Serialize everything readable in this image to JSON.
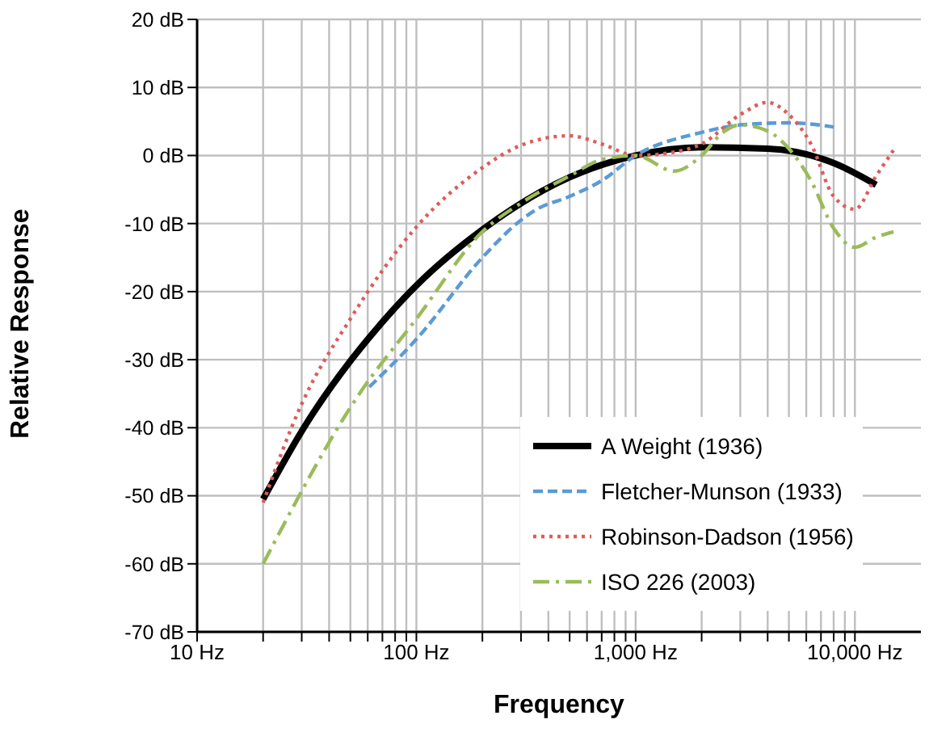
{
  "chart_data": {
    "type": "line",
    "xlabel": "Frequency",
    "ylabel": "Relative Response",
    "log": "x",
    "grid": true,
    "legend": "bottom right",
    "marker": "none",
    "xlim": [
      10,
      20000
    ],
    "xticks": [
      {
        "value": 10,
        "label": "10 Hz"
      },
      {
        "value": 20,
        "label": null
      },
      {
        "value": 30,
        "label": null
      },
      {
        "value": 40,
        "label": null
      },
      {
        "value": 50,
        "label": null
      },
      {
        "value": 60,
        "label": null
      },
      {
        "value": 70,
        "label": null
      },
      {
        "value": 80,
        "label": null
      },
      {
        "value": 90,
        "label": null
      },
      {
        "value": 100,
        "label": "100 Hz"
      },
      {
        "value": 200,
        "label": null
      },
      {
        "value": 300,
        "label": null
      },
      {
        "value": 400,
        "label": null
      },
      {
        "value": 500,
        "label": null
      },
      {
        "value": 600,
        "label": null
      },
      {
        "value": 700,
        "label": null
      },
      {
        "value": 800,
        "label": null
      },
      {
        "value": 900,
        "label": null
      },
      {
        "value": 1000,
        "label": "1,000 Hz"
      },
      {
        "value": 2000,
        "label": null
      },
      {
        "value": 3000,
        "label": null
      },
      {
        "value": 4000,
        "label": null
      },
      {
        "value": 5000,
        "label": null
      },
      {
        "value": 6000,
        "label": null
      },
      {
        "value": 7000,
        "label": null
      },
      {
        "value": 8000,
        "label": null
      },
      {
        "value": 9000,
        "label": null
      },
      {
        "value": 10000,
        "label": "10,000 Hz"
      }
    ],
    "ylim": [
      -70,
      20
    ],
    "yticks": [
      {
        "value": -70,
        "label": "-70 dB"
      },
      {
        "value": -60,
        "label": "-60 dB"
      },
      {
        "value": -50,
        "label": "-50 dB"
      },
      {
        "value": -40,
        "label": "-40 dB"
      },
      {
        "value": -30,
        "label": "-30 dB"
      },
      {
        "value": -20,
        "label": "-20 dB"
      },
      {
        "value": -10,
        "label": "-10 dB"
      },
      {
        "value": 0,
        "label": "0 dB"
      },
      {
        "value": 10,
        "label": "10 dB"
      },
      {
        "value": 20,
        "label": "20 dB"
      }
    ],
    "series": [
      {
        "name": "A Weight (1936)",
        "color": "#000000",
        "line_style": "solid",
        "x": [
          20,
          31.5,
          50,
          63,
          100,
          200,
          500,
          1000,
          2000,
          4000,
          8000,
          12500
        ],
        "values": [
          -50.5,
          -39.4,
          -30.2,
          -26.2,
          -19.1,
          -10.9,
          -3.2,
          0,
          1.2,
          1,
          -1.1,
          -4.3
        ]
      },
      {
        "name": "Fletcher-Munson (1933)",
        "color": "#5b9bd5",
        "line_style": "dashed",
        "x": [
          61,
          100,
          200,
          300,
          350,
          500,
          700,
          1000,
          2000,
          3000,
          5000,
          8000
        ],
        "values": [
          -34,
          -27,
          -15,
          -9.5,
          -8,
          -6,
          -3.7,
          0,
          3.4,
          4.5,
          4.8,
          4.2
        ]
      },
      {
        "name": "Robinson-Dadson (1956)",
        "color": "#dd5c5c",
        "line_style": "dotted",
        "x": [
          20,
          30,
          50,
          100,
          200,
          300,
          500,
          700,
          1000,
          1500,
          2000,
          3000,
          4000,
          5000,
          6300,
          8000,
          10000,
          12500,
          15000
        ],
        "values": [
          -51,
          -36.5,
          -24,
          -10.5,
          -1.8,
          1.5,
          2.9,
          1.7,
          0,
          0.5,
          1.7,
          6,
          7.8,
          6,
          1.7,
          -6,
          -7.9,
          -3,
          0.8
        ]
      },
      {
        "name": "ISO 226 (2003)",
        "color": "#9bbb59",
        "line_style": "dashdot",
        "x": [
          20,
          55,
          100,
          200,
          300,
          500,
          700,
          1000,
          1500,
          2000,
          2500,
          3000,
          4000,
          5000,
          6300,
          8000,
          10000,
          12500,
          15000
        ],
        "values": [
          -60,
          -35,
          -24,
          -11.2,
          -7,
          -3,
          -0.6,
          0,
          -2.3,
          0,
          3.4,
          4.5,
          3.6,
          1,
          -3.7,
          -10.7,
          -13.5,
          -12,
          -11.2
        ]
      }
    ]
  }
}
